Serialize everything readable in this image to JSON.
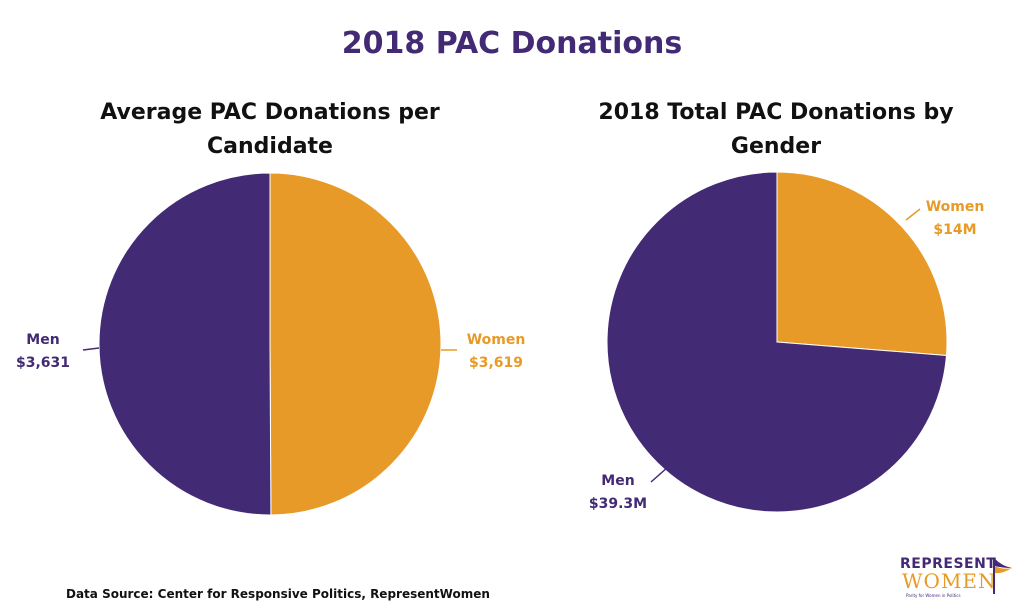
{
  "title": "2018 PAC Donations",
  "colors": {
    "men": "#432a75",
    "women": "#e89a28"
  },
  "charts": [
    {
      "title_line1": "Average PAC Donations per",
      "title_line2": "Candidate",
      "men_label": "Men",
      "men_value": "$3,631",
      "women_label": "Women",
      "women_value": "$3,619"
    },
    {
      "title_line1": "2018 Total PAC Donations by",
      "title_line2": "Gender",
      "men_label": "Men",
      "men_value": "$39.3M",
      "women_label": "Women",
      "women_value": "$14M"
    }
  ],
  "source": "Data Source: Center for Responsive Politics, RepresentWomen",
  "logo": {
    "line1": "REPRESENT",
    "line2": "WOMEN",
    "tagline": "Parity for Women in Politics"
  },
  "chart_data": [
    {
      "type": "pie",
      "title": "Average PAC Donations per Candidate",
      "categories": [
        "Women",
        "Men"
      ],
      "values": [
        3619,
        3631
      ],
      "labels": [
        "$3,619",
        "$3,631"
      ],
      "colors": [
        "#e89a28",
        "#432a75"
      ]
    },
    {
      "type": "pie",
      "title": "2018 Total PAC Donations by Gender",
      "categories": [
        "Women",
        "Men"
      ],
      "values": [
        14.0,
        39.3
      ],
      "labels": [
        "$14M",
        "$39.3M"
      ],
      "units": "USD millions",
      "colors": [
        "#e89a28",
        "#432a75"
      ]
    }
  ]
}
